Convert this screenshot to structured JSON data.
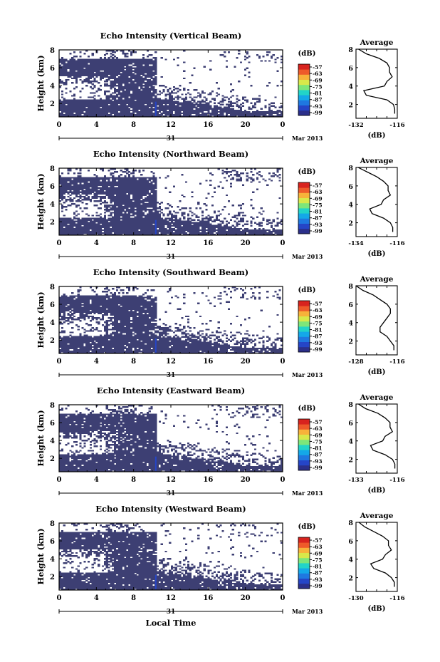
{
  "figure": {
    "bottom_xlabel": "Local Time",
    "colorbar_unit": "(dB)",
    "colorbar_ticks": [
      "-57",
      "-63",
      "-69",
      "-75",
      "-81",
      "-87",
      "-93",
      "-99"
    ],
    "colorbar_colors": [
      "#2b2f8a",
      "#2545c7",
      "#1f78e0",
      "#14a8e8",
      "#22d4c8",
      "#7de67a",
      "#d8e84a",
      "#f7b23a",
      "#ee5a2a",
      "#d8231e"
    ],
    "fill_color": "#3d3f73",
    "date_axis": {
      "day_label": "31",
      "month_label": "Mar 2013"
    }
  },
  "chart_data": [
    {
      "type": "heatmap",
      "title": "Echo Intensity (Vertical Beam)",
      "ylabel": "Height (km)",
      "xticks": [
        "0",
        "4",
        "8",
        "12",
        "16",
        "20",
        "0"
      ],
      "yticks": [
        "2",
        "4",
        "6",
        "8"
      ],
      "xlim": [
        0,
        24
      ],
      "ylim": [
        0.5,
        8
      ],
      "profile": {
        "title": "Average",
        "xlabel": "(dB)",
        "xticks": [
          "-132",
          "-116"
        ],
        "xlim": [
          -132,
          -116
        ],
        "heights": [
          1.0,
          1.5,
          2.0,
          2.5,
          3.0,
          3.5,
          4.0,
          4.5,
          5.0,
          5.5,
          6.0,
          6.5,
          7.0,
          7.5,
          8.0
        ],
        "values": [
          -117,
          -117,
          -117.5,
          -120,
          -128,
          -129,
          -121,
          -120,
          -118,
          -119,
          -119,
          -120,
          -123,
          -128,
          -131
        ]
      }
    },
    {
      "type": "heatmap",
      "title": "Echo Intensity (Northward Beam)",
      "ylabel": "Height (km)",
      "xticks": [
        "0",
        "4",
        "8",
        "12",
        "16",
        "20",
        "0"
      ],
      "yticks": [
        "2",
        "4",
        "6",
        "8"
      ],
      "xlim": [
        0,
        24
      ],
      "ylim": [
        0.5,
        8
      ],
      "profile": {
        "title": "Average",
        "xlabel": "(dB)",
        "xticks": [
          "-134",
          "-116"
        ],
        "xlim": [
          -134,
          -116
        ],
        "heights": [
          1.0,
          1.5,
          2.0,
          2.5,
          3.0,
          3.5,
          4.0,
          4.5,
          5.0,
          5.5,
          6.0,
          6.5,
          7.0,
          7.5,
          8.0
        ],
        "values": [
          -118,
          -118,
          -119,
          -122,
          -127,
          -128,
          -123,
          -122,
          -119,
          -120,
          -120,
          -122,
          -125,
          -129,
          -133
        ]
      }
    },
    {
      "type": "heatmap",
      "title": "Echo Intensity (Southward Beam)",
      "ylabel": "Height (km)",
      "xticks": [
        "0",
        "4",
        "8",
        "12",
        "16",
        "20",
        "0"
      ],
      "yticks": [
        "2",
        "4",
        "6",
        "8"
      ],
      "xlim": [
        0,
        24
      ],
      "ylim": [
        0.5,
        8
      ],
      "profile": {
        "title": "Average",
        "xlabel": "(dB)",
        "xticks": [
          "-128",
          "-116"
        ],
        "xlim": [
          -128,
          -116
        ],
        "heights": [
          1.0,
          1.5,
          2.0,
          2.5,
          3.0,
          3.5,
          4.0,
          4.5,
          5.0,
          5.5,
          6.0,
          6.5,
          7.0,
          7.5,
          8.0
        ],
        "values": [
          -117,
          -117,
          -118,
          -119,
          -121,
          -121,
          -120,
          -119,
          -118,
          -118,
          -119,
          -121,
          -123,
          -126,
          -128
        ]
      }
    },
    {
      "type": "heatmap",
      "title": "Echo Intensity (Eastward Beam)",
      "ylabel": "Height (km)",
      "xticks": [
        "0",
        "4",
        "8",
        "12",
        "16",
        "20",
        "0"
      ],
      "yticks": [
        "2",
        "4",
        "6",
        "8"
      ],
      "xlim": [
        0,
        24
      ],
      "ylim": [
        0.5,
        8
      ],
      "profile": {
        "title": "Average",
        "xlabel": "(dB)",
        "xticks": [
          "-133",
          "-116"
        ],
        "xlim": [
          -133,
          -116
        ],
        "heights": [
          1.0,
          1.5,
          2.0,
          2.5,
          3.0,
          3.5,
          4.0,
          4.5,
          5.0,
          5.5,
          6.0,
          6.5,
          7.0,
          7.5,
          8.0
        ],
        "values": [
          -117,
          -117,
          -118,
          -121,
          -126,
          -127,
          -122,
          -121,
          -118,
          -119,
          -119,
          -121,
          -124,
          -129,
          -132
        ]
      }
    },
    {
      "type": "heatmap",
      "title": "Echo Intensity (Westward Beam)",
      "ylabel": "Height (km)",
      "xticks": [
        "0",
        "4",
        "8",
        "12",
        "16",
        "20",
        "0"
      ],
      "yticks": [
        "2",
        "4",
        "6",
        "8"
      ],
      "xlim": [
        0,
        24
      ],
      "ylim": [
        0.5,
        8
      ],
      "profile": {
        "title": "Average",
        "xlabel": "(dB)",
        "xticks": [
          "-130",
          "-116"
        ],
        "xlim": [
          -130,
          -116
        ],
        "heights": [
          1.0,
          1.5,
          2.0,
          2.5,
          3.0,
          3.5,
          4.0,
          4.5,
          5.0,
          5.5,
          6.0,
          6.5,
          7.0,
          7.5,
          8.0
        ],
        "values": [
          -117,
          -117,
          -118,
          -120,
          -124,
          -125,
          -121,
          -120,
          -118,
          -119,
          -119,
          -121,
          -124,
          -127,
          -129
        ]
      }
    }
  ]
}
